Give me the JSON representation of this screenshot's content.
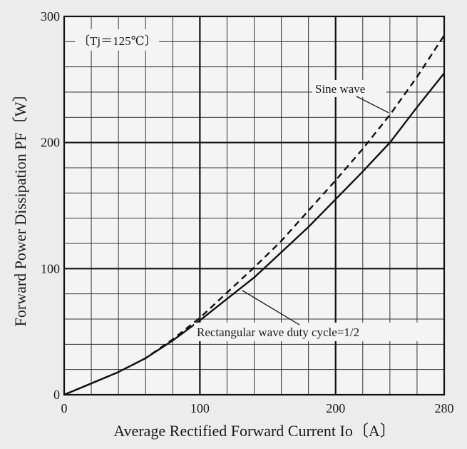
{
  "chart_data": {
    "type": "line",
    "title": "",
    "xlabel": "Average Rectified Forward Current  Io〔A〕",
    "ylabel": "Forward Power Dissipation  PF〔W〕",
    "xlim": [
      0,
      280
    ],
    "ylim": [
      0,
      300
    ],
    "xticks": [
      0,
      100,
      200,
      280
    ],
    "yticks": [
      0,
      100,
      200,
      300
    ],
    "x_minor_step": 20,
    "y_minor_step": 20,
    "grid": true,
    "condition_label": "〔Tj＝125℃〕",
    "series": [
      {
        "name": "Sine wave",
        "style": "dashed",
        "color": "#111111",
        "x": [
          0,
          20,
          40,
          60,
          80,
          100,
          120,
          140,
          160,
          180,
          200,
          220,
          240,
          260,
          280
        ],
        "y": [
          0,
          9,
          18,
          29,
          44,
          61,
          81,
          101,
          122,
          146,
          170,
          195,
          222,
          252,
          285
        ]
      },
      {
        "name": "Rectangular wave duty cycle=1/2",
        "style": "solid",
        "color": "#111111",
        "x": [
          0,
          20,
          40,
          60,
          80,
          100,
          120,
          140,
          160,
          180,
          200,
          220,
          240,
          260,
          280
        ],
        "y": [
          0,
          9,
          18,
          29,
          43,
          59,
          76,
          93,
          113,
          133,
          155,
          177,
          200,
          228,
          255
        ]
      }
    ],
    "annotations": [
      {
        "text": "Sine wave",
        "series_index": 0,
        "target_x": 240
      },
      {
        "text": "Rectangular wave duty cycle=1/2",
        "series_index": 1,
        "target_x": 130
      }
    ]
  }
}
